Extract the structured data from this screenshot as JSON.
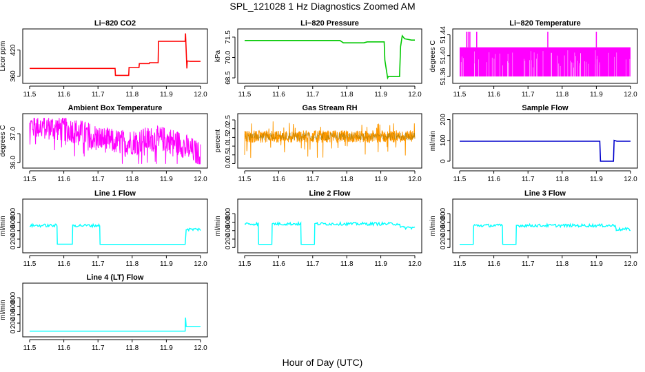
{
  "figure": {
    "title": "SPL_121028  1 Hz Diagnostics Zoomed AM",
    "xlabel": "Hour of Day (UTC)"
  },
  "chart_data": [
    {
      "type": "line",
      "title": "Li−820 CO2",
      "xlabel": "",
      "ylabel": "Licor ppm",
      "color": "#ff0000",
      "xlim": [
        11.5,
        12.0
      ],
      "ylim": [
        350,
        462
      ],
      "x_ticks": [
        "11.5",
        "11.6",
        "11.7",
        "11.8",
        "11.9",
        "12.0"
      ],
      "y_ticks": [
        "360",
        "420"
      ],
      "y_tick_values": [
        360,
        420
      ],
      "series": [
        {
          "x": [
            11.5,
            11.7,
            11.701,
            11.75,
            11.751,
            11.79,
            11.791,
            11.82,
            11.821,
            11.85,
            11.851,
            11.876,
            11.877,
            11.955,
            11.956,
            11.96,
            11.961,
            11.97,
            12.0
          ],
          "y": [
            378,
            378,
            378,
            378,
            362,
            362,
            380,
            380,
            389,
            389,
            391,
            391,
            440,
            440,
            458,
            378,
            395,
            394,
            394
          ]
        }
      ]
    },
    {
      "type": "line",
      "title": "Li−820 Pressure",
      "xlabel": "",
      "ylabel": "kPa",
      "color": "#00c800",
      "xlim": [
        11.5,
        12.0
      ],
      "ylim": [
        68.3,
        71.9
      ],
      "x_ticks": [
        "11.5",
        "11.6",
        "11.7",
        "11.8",
        "11.9",
        "12.0"
      ],
      "y_ticks": [
        "68.5",
        "70.0",
        "71.5"
      ],
      "y_tick_values": [
        68.5,
        70.0,
        71.5
      ],
      "series": [
        {
          "x": [
            11.5,
            11.78,
            11.79,
            11.85,
            11.86,
            11.91,
            11.912,
            11.92,
            11.922,
            11.955,
            11.958,
            11.963,
            11.97,
            11.99,
            12.0
          ],
          "y": [
            71.25,
            71.25,
            71.08,
            71.08,
            71.15,
            71.15,
            69.8,
            68.5,
            68.6,
            68.6,
            70.8,
            71.6,
            71.38,
            71.28,
            71.28
          ]
        }
      ]
    },
    {
      "type": "line",
      "title": "Li−820 Temperature",
      "xlabel": "",
      "ylabel": "degrees C",
      "color": "#ff00ff",
      "xlim": [
        11.5,
        12.0
      ],
      "ylim": [
        51.352,
        51.446
      ],
      "x_ticks": [
        "11.5",
        "11.6",
        "11.7",
        "11.8",
        "11.9",
        "12.0"
      ],
      "y_ticks": [
        "51.36",
        "51.40",
        "51.44"
      ],
      "y_tick_values": [
        51.36,
        51.4,
        51.44
      ],
      "band": {
        "x_start": 11.5,
        "x_end": 12.0,
        "y_low": 51.36,
        "y_high": 51.416
      },
      "spikes": [
        11.52,
        11.525,
        11.53,
        11.55,
        11.758,
        11.9
      ]
    },
    {
      "type": "line",
      "title": "Ambient Box Temperature",
      "xlabel": "",
      "ylabel": "degrees C",
      "color": "#ff00ff",
      "xlim": [
        11.5,
        12.0
      ],
      "ylim": [
        35.9,
        37.6
      ],
      "x_ticks": [
        "11.5",
        "11.6",
        "11.7",
        "11.8",
        "11.9",
        "12.0"
      ],
      "y_ticks": [
        "36.0",
        "37.0"
      ],
      "y_tick_values": [
        36.0,
        37.0
      ],
      "series": [
        {
          "x": [
            11.5,
            11.6,
            11.7,
            11.8,
            11.9,
            12.0
          ],
          "y": [
            37.3,
            36.9,
            36.7,
            36.6,
            36.5,
            36.4
          ]
        }
      ]
    },
    {
      "type": "line",
      "title": "Gas Stream RH",
      "xlabel": "",
      "ylabel": "percent",
      "color": "#ff9900",
      "color_secondary": "#666600",
      "xlim": [
        11.5,
        12.0
      ],
      "ylim": [
        -0.1,
        2.7
      ],
      "x_ticks": [
        "11.5",
        "11.6",
        "11.7",
        "11.8",
        "11.9",
        "12.0"
      ],
      "y_ticks": [
        "0.0",
        "0.5",
        "1.0",
        "1.5",
        "2.0",
        "2.5"
      ],
      "y_tick_values": [
        0.0,
        0.5,
        1.0,
        1.5,
        2.0,
        2.5
      ],
      "series": [
        {
          "x": [
            11.5,
            12.0
          ],
          "y": [
            1.5,
            1.5
          ]
        }
      ]
    },
    {
      "type": "line",
      "title": "Sample Flow",
      "xlabel": "",
      "ylabel": "ml/min",
      "color": "#0000cc",
      "xlim": [
        11.5,
        12.0
      ],
      "ylim": [
        -20,
        215
      ],
      "x_ticks": [
        "11.5",
        "11.6",
        "11.7",
        "11.8",
        "11.9",
        "12.0"
      ],
      "y_ticks": [
        "0",
        "100",
        "200"
      ],
      "y_tick_values": [
        0,
        100,
        200
      ],
      "series": [
        {
          "x": [
            11.5,
            11.91,
            11.912,
            11.95,
            11.952,
            11.96,
            12.0
          ],
          "y": [
            96,
            96,
            0,
            0,
            100,
            96,
            96
          ]
        }
      ]
    },
    {
      "type": "line",
      "title": "Line 1 Flow",
      "xlabel": "",
      "ylabel": "ml/min",
      "color": "#00ffff",
      "xlim": [
        11.5,
        12.0
      ],
      "ylim": [
        -60,
        1080
      ],
      "x_ticks": [
        "11.5",
        "11.6",
        "11.7",
        "11.8",
        "11.9",
        "12.0"
      ],
      "y_ticks": [
        "0",
        "200",
        "400",
        "600",
        "800"
      ],
      "y_tick_values": [
        0,
        200,
        400,
        600,
        800
      ],
      "series": [
        {
          "x": [
            11.5,
            11.58,
            11.581,
            11.625,
            11.626,
            11.705,
            11.706,
            11.955,
            11.958,
            12.0
          ],
          "y": [
            520,
            520,
            80,
            80,
            520,
            520,
            75,
            75,
            430,
            430
          ]
        }
      ]
    },
    {
      "type": "line",
      "title": "Line 2 Flow",
      "xlabel": "",
      "ylabel": "ml/min",
      "color": "#00ffff",
      "xlim": [
        11.5,
        12.0
      ],
      "ylim": [
        -60,
        1080
      ],
      "x_ticks": [
        "11.5",
        "11.6",
        "11.7",
        "11.8",
        "11.9",
        "12.0"
      ],
      "y_ticks": [
        "0",
        "200",
        "400",
        "600",
        "800"
      ],
      "y_tick_values": [
        0,
        200,
        400,
        600,
        800
      ],
      "series": [
        {
          "x": [
            11.5,
            11.54,
            11.541,
            11.58,
            11.581,
            11.665,
            11.666,
            11.705,
            11.706,
            11.955,
            11.958,
            12.0
          ],
          "y": [
            560,
            560,
            75,
            75,
            560,
            560,
            75,
            75,
            560,
            560,
            470,
            470
          ]
        }
      ]
    },
    {
      "type": "line",
      "title": "Line 3 Flow",
      "xlabel": "",
      "ylabel": "ml/min",
      "color": "#00ffff",
      "xlim": [
        11.5,
        12.0
      ],
      "ylim": [
        -60,
        1080
      ],
      "x_ticks": [
        "11.5",
        "11.6",
        "11.7",
        "11.8",
        "11.9",
        "12.0"
      ],
      "y_ticks": [
        "0",
        "200",
        "400",
        "600",
        "800"
      ],
      "y_tick_values": [
        0,
        200,
        400,
        600,
        800
      ],
      "series": [
        {
          "x": [
            11.5,
            11.54,
            11.541,
            11.625,
            11.626,
            11.665,
            11.666,
            11.955,
            11.958,
            12.0
          ],
          "y": [
            75,
            75,
            520,
            520,
            75,
            75,
            520,
            520,
            430,
            430
          ]
        }
      ]
    },
    {
      "type": "line",
      "title": "Line 4 (LT) Flow",
      "xlabel": "",
      "ylabel": "ml/min",
      "color": "#00ffff",
      "xlim": [
        11.5,
        12.0
      ],
      "ylim": [
        -60,
        1080
      ],
      "x_ticks": [
        "11.5",
        "11.6",
        "11.7",
        "11.8",
        "11.9",
        "12.0"
      ],
      "y_ticks": [
        "0",
        "200",
        "400",
        "600",
        "800"
      ],
      "y_tick_values": [
        0,
        200,
        400,
        600,
        800
      ],
      "series": [
        {
          "x": [
            11.5,
            11.955,
            11.956,
            11.958,
            11.96,
            12.0
          ],
          "y": [
            10,
            10,
            330,
            120,
            120,
            120
          ]
        }
      ]
    }
  ]
}
